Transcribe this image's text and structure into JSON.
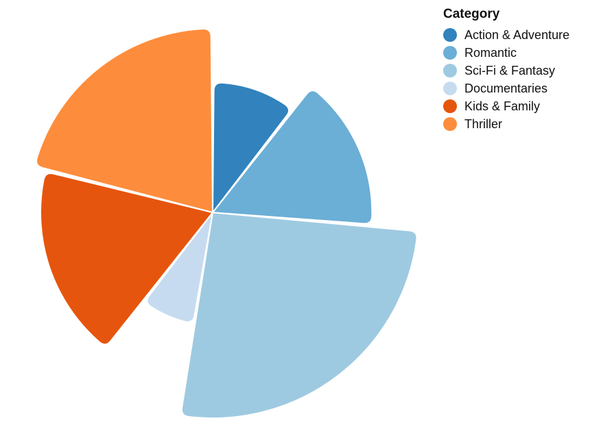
{
  "chart_data": {
    "type": "pie",
    "legend": {
      "title": "Category",
      "position": "top-right"
    },
    "categories": [
      "Action & Adventure",
      "Romantic",
      "Sci-Fi & Fantasy",
      "Documentaries",
      "Kids & Family",
      "Thriller"
    ],
    "values": [
      4,
      6,
      10,
      3,
      7,
      8
    ],
    "colors": [
      "#3182bd",
      "#6baed6",
      "#9ecae1",
      "#c6dbef",
      "#e6550d",
      "#fd8d3c"
    ]
  }
}
